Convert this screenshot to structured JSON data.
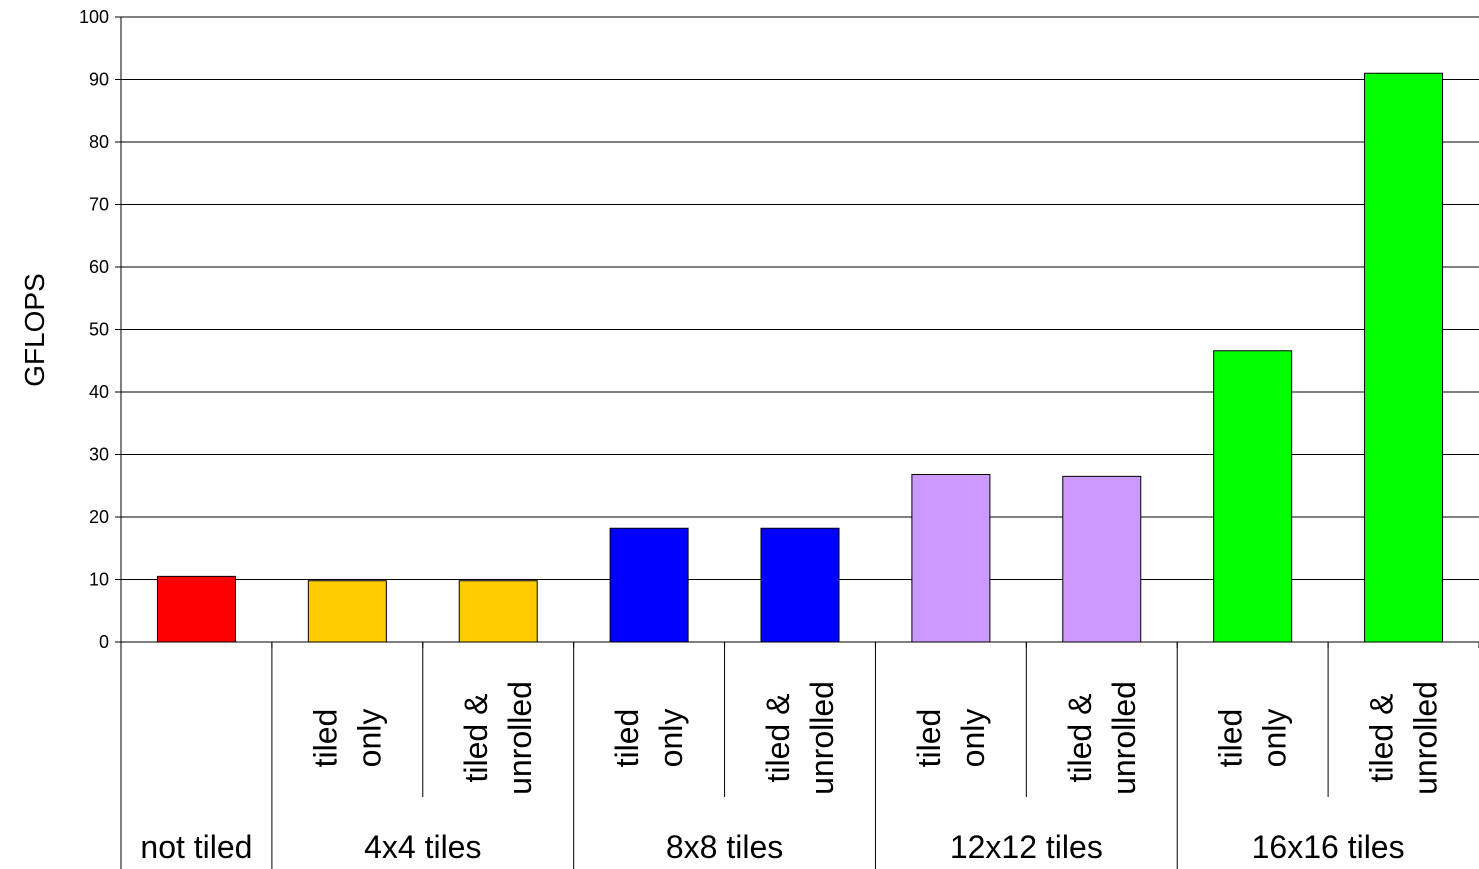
{
  "chart_data": {
    "type": "bar",
    "title": "",
    "ylabel": "GFLOPS",
    "xlabel": "",
    "ylim": [
      0,
      100
    ],
    "yticks": [
      0,
      10,
      20,
      30,
      40,
      50,
      60,
      70,
      80,
      90,
      100
    ],
    "grid": true,
    "legend": "none",
    "bars": [
      {
        "group": "not tiled",
        "label": [],
        "value": 10.5,
        "color": "#ff0000"
      },
      {
        "group": "4x4 tiles",
        "label": [
          "tiled",
          "only"
        ],
        "value": 9.8,
        "color": "#ffcc00"
      },
      {
        "group": "4x4 tiles",
        "label": [
          "tiled &",
          "unrolled"
        ],
        "value": 9.8,
        "color": "#ffcc00"
      },
      {
        "group": "8x8 tiles",
        "label": [
          "tiled",
          "only"
        ],
        "value": 18.2,
        "color": "#0000ff"
      },
      {
        "group": "8x8 tiles",
        "label": [
          "tiled &",
          "unrolled"
        ],
        "value": 18.2,
        "color": "#0000ff"
      },
      {
        "group": "12x12 tiles",
        "label": [
          "tiled",
          "only"
        ],
        "value": 26.8,
        "color": "#cc99ff"
      },
      {
        "group": "12x12 tiles",
        "label": [
          "tiled &",
          "unrolled"
        ],
        "value": 26.5,
        "color": "#cc99ff"
      },
      {
        "group": "16x16 tiles",
        "label": [
          "tiled",
          "only"
        ],
        "value": 46.6,
        "color": "#00ff00"
      },
      {
        "group": "16x16 tiles",
        "label": [
          "tiled &",
          "unrolled"
        ],
        "value": 91.0,
        "color": "#00ff00"
      }
    ],
    "groups": [
      {
        "name": "not tiled",
        "span": 1
      },
      {
        "name": "4x4 tiles",
        "span": 2
      },
      {
        "name": "8x8 tiles",
        "span": 2
      },
      {
        "name": "12x12 tiles",
        "span": 2
      },
      {
        "name": "16x16 tiles",
        "span": 2
      }
    ]
  }
}
